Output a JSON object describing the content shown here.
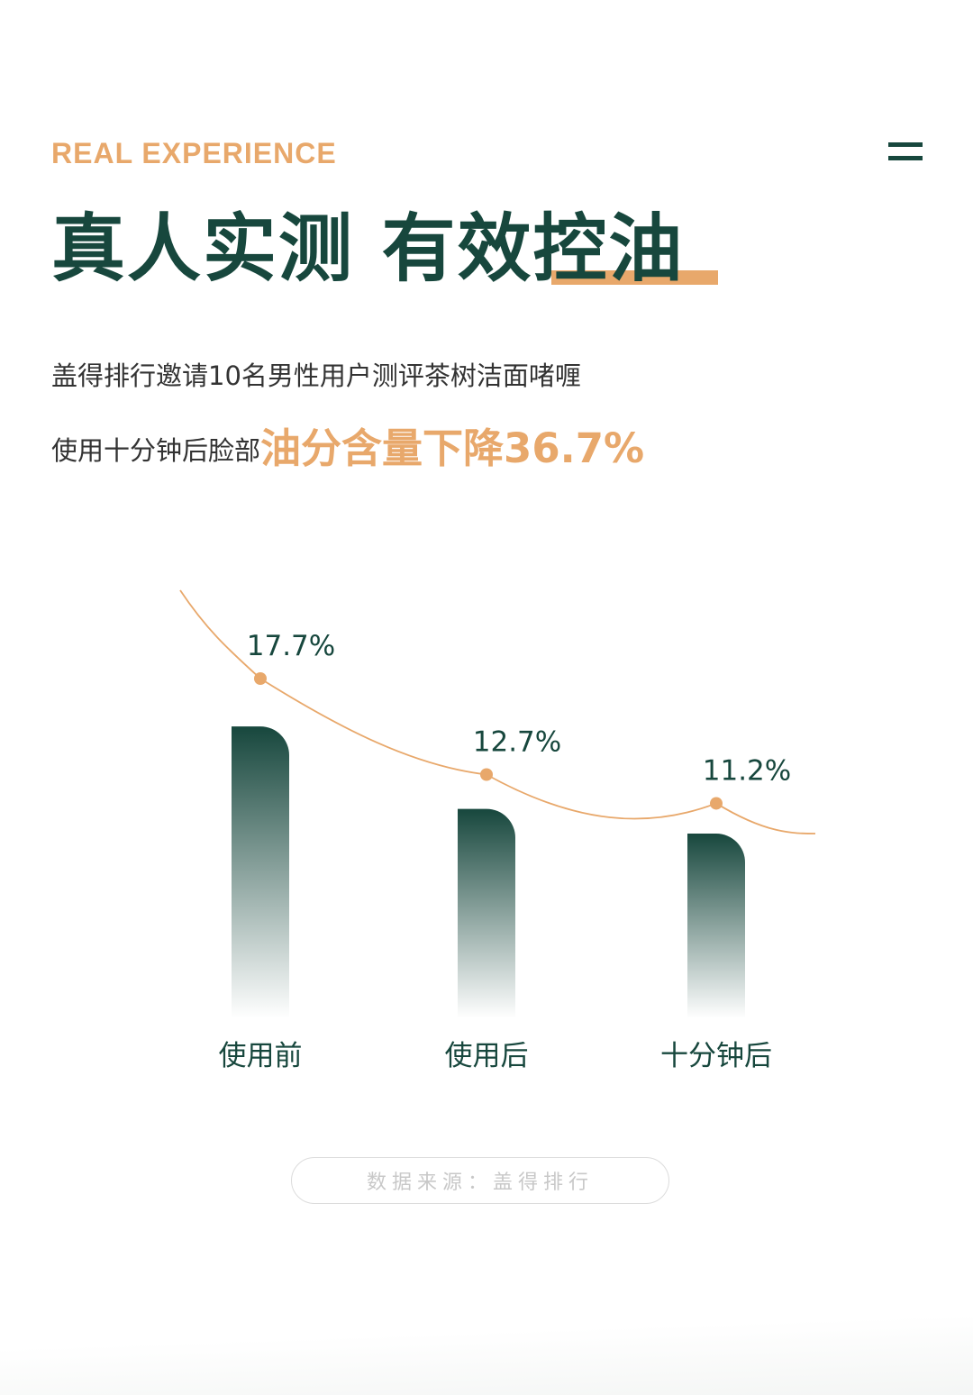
{
  "header": {
    "eyebrow": "REAL EXPERIENCE",
    "title": "真人实测  有效控油"
  },
  "intro": {
    "line1": "盖得排行邀请10名男性用户测评茶树洁面啫喱",
    "line2_prefix": "使用十分钟后脸部",
    "line2_highlight": "油分含量下降36.7%"
  },
  "colors": {
    "brand_green": "#17473d",
    "accent_orange": "#e8a86b"
  },
  "chart_data": {
    "type": "bar",
    "categories": [
      "使用前",
      "使用后",
      "十分钟后"
    ],
    "values": [
      17.7,
      12.7,
      11.2
    ],
    "value_labels": [
      "17.7%",
      "12.7%",
      "11.2%"
    ],
    "title": "",
    "xlabel": "",
    "ylabel": "",
    "trend_line": true,
    "grid": false
  },
  "footer": {
    "source": "数据来源：盖得排行"
  },
  "icons": {
    "menu": "menu-icon"
  }
}
